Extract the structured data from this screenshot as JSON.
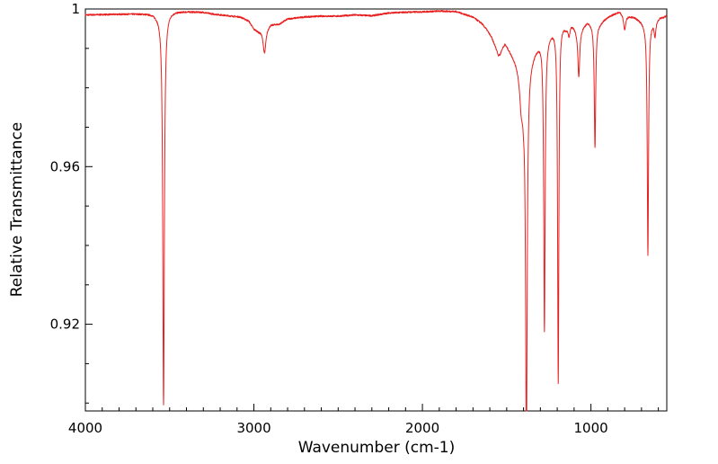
{
  "chart_data": {
    "type": "line",
    "title": "",
    "xlabel": "Wavenumber (cm-1)",
    "ylabel": "Relative Transmittance",
    "xlim": [
      4000,
      550
    ],
    "ylim": [
      0.898,
      1.0
    ],
    "x_reversed": true,
    "grid": false,
    "legend": "none",
    "x_ticks": [
      4000,
      3000,
      2000,
      1000
    ],
    "x_tick_labels": [
      "4000",
      "3000",
      "2000",
      "1000"
    ],
    "y_ticks": [
      0.92,
      0.96,
      1.0
    ],
    "y_tick_labels": [
      "0.92",
      "0.96",
      "1"
    ],
    "series": [
      {
        "color": "#e8201f",
        "baseline": [
          [
            4000,
            0.9985
          ],
          [
            3900,
            0.9986
          ],
          [
            3800,
            0.9987
          ],
          [
            3700,
            0.9988
          ],
          [
            3600,
            0.9989
          ],
          [
            3560,
            0.9985
          ],
          [
            3500,
            0.9995
          ],
          [
            3400,
            0.9994
          ],
          [
            3300,
            0.9992
          ],
          [
            3250,
            0.9988
          ],
          [
            3150,
            0.9983
          ],
          [
            3080,
            0.998
          ],
          [
            3030,
            0.997
          ],
          [
            3000,
            0.995
          ],
          [
            2970,
            0.9945
          ],
          [
            2900,
            0.9962
          ],
          [
            2850,
            0.9962
          ],
          [
            2800,
            0.9975
          ],
          [
            2700,
            0.998
          ],
          [
            2600,
            0.9982
          ],
          [
            2500,
            0.9982
          ],
          [
            2400,
            0.9985
          ],
          [
            2300,
            0.9983
          ],
          [
            2200,
            0.999
          ],
          [
            2100,
            0.9992
          ],
          [
            2000,
            0.9993
          ],
          [
            1900,
            0.9995
          ],
          [
            1800,
            0.9994
          ],
          [
            1700,
            0.998
          ],
          [
            1650,
            0.9965
          ],
          [
            1620,
            0.995
          ],
          [
            1590,
            0.993
          ],
          [
            1550,
            0.989
          ],
          [
            1510,
            0.9915
          ],
          [
            1480,
            0.9895
          ],
          [
            1450,
            0.9875
          ],
          [
            1420,
            0.9855
          ],
          [
            1400,
            0.979
          ],
          [
            1360,
            0.987
          ],
          [
            1330,
            0.99
          ],
          [
            1290,
            0.993
          ],
          [
            1250,
            0.994
          ],
          [
            1230,
            0.995
          ],
          [
            1180,
            0.9975
          ],
          [
            1150,
            0.996
          ],
          [
            1120,
            0.997
          ],
          [
            1090,
            0.9955
          ],
          [
            1050,
            0.996
          ],
          [
            1020,
            0.997
          ],
          [
            980,
            0.9965
          ],
          [
            950,
            0.9965
          ],
          [
            920,
            0.9975
          ],
          [
            880,
            0.9985
          ],
          [
            830,
            0.9995
          ],
          [
            780,
            0.9985
          ],
          [
            740,
            0.998
          ],
          [
            700,
            0.997
          ],
          [
            660,
            0.996
          ],
          [
            640,
            0.997
          ],
          [
            610,
            0.9975
          ],
          [
            590,
            0.998
          ],
          [
            570,
            0.998
          ],
          [
            550,
            0.9985
          ]
        ],
        "peaks": [
          {
            "x": 3536,
            "depth": 0.0995,
            "width": 5.5
          },
          {
            "x": 2937,
            "depth": 0.0065,
            "width": 10
          },
          {
            "x": 1540,
            "depth": 0.001,
            "width": 10
          },
          {
            "x": 1415,
            "depth": 0.008,
            "width": 12
          },
          {
            "x": 1383,
            "depth": 0.095,
            "width": 5.5
          },
          {
            "x": 1276,
            "depth": 0.0745,
            "width": 5
          },
          {
            "x": 1194,
            "depth": 0.0915,
            "width": 4.5
          },
          {
            "x": 1130,
            "depth": 0.003,
            "width": 8
          },
          {
            "x": 1072,
            "depth": 0.0125,
            "width": 7
          },
          {
            "x": 976,
            "depth": 0.0315,
            "width": 5
          },
          {
            "x": 800,
            "depth": 0.004,
            "width": 8
          },
          {
            "x": 662,
            "depth": 0.0585,
            "width": 4.5
          },
          {
            "x": 620,
            "depth": 0.004,
            "width": 6
          }
        ]
      }
    ]
  }
}
